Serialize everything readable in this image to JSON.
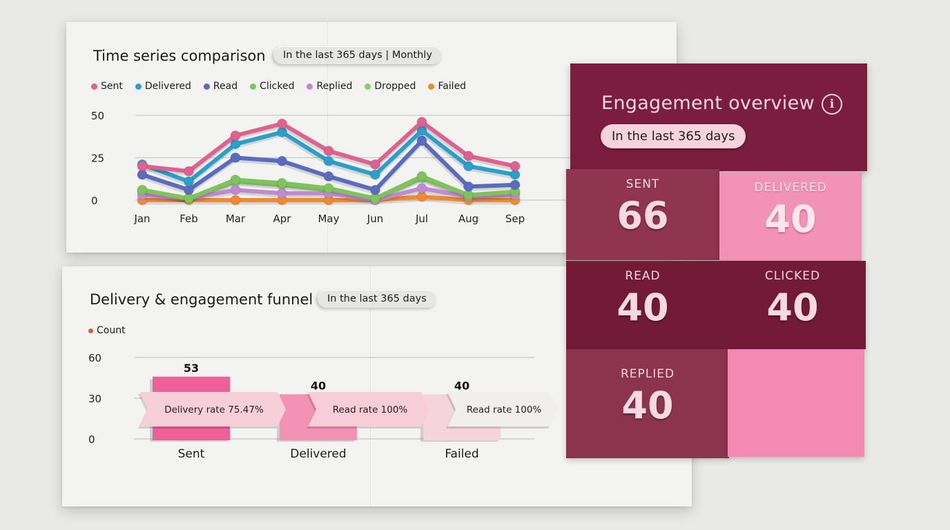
{
  "timeseries": {
    "title": "Time series comparison",
    "filter_pill": "In the last 365 days | Monthly",
    "legend": [
      {
        "label": "Sent",
        "color": "#e0608f"
      },
      {
        "label": "Delivered",
        "color": "#2a9fcc"
      },
      {
        "label": "Read",
        "color": "#5a6cc0"
      },
      {
        "label": "Clicked",
        "color": "#7dc45a"
      },
      {
        "label": "Replied",
        "color": "#c08ad0"
      },
      {
        "label": "Dropped",
        "color": "#8ccc6e"
      },
      {
        "label": "Failed",
        "color": "#f08a2e"
      }
    ],
    "y_ticks": [
      "50",
      "25",
      "0"
    ],
    "x_ticks": [
      "Jan",
      "Feb",
      "Mar",
      "Apr",
      "May",
      "Jun",
      "Jul",
      "Aug",
      "Sep"
    ]
  },
  "funnel": {
    "title": "Delivery & engagement funnel",
    "filter_pill": "In the last 365 days",
    "legend_label": "Count",
    "legend_color": "#d0603a",
    "y_ticks": [
      "60",
      "30",
      "0"
    ],
    "bars": [
      {
        "label": "Sent",
        "value": "53",
        "color": "#ef5f98"
      },
      {
        "label": "Delivered",
        "value": "40",
        "color": "#f392b4"
      },
      {
        "label": "Failed",
        "value": "40",
        "color": "#f6d4dd"
      }
    ],
    "rates": [
      "Delivery rate 75.47%",
      "Read rate 100%",
      "Read rate 100%"
    ]
  },
  "engagement": {
    "title": "Engagement overview",
    "info_icon": "i",
    "filter_pill": "In the last 365 days",
    "tiles": [
      {
        "label": "SENT",
        "value": "66"
      },
      {
        "label": "DELIVERED",
        "value": "40"
      },
      {
        "label": "READ",
        "value": "40"
      },
      {
        "label": "CLICKED",
        "value": "40"
      },
      {
        "label": "REPLIED",
        "value": "40"
      },
      {
        "label": "",
        "value": ""
      }
    ]
  },
  "chart_data": [
    {
      "type": "line",
      "title": "Time series comparison",
      "subtitle": "In the last 365 days | Monthly",
      "x": [
        "Jan",
        "Feb",
        "Mar",
        "Apr",
        "May",
        "Jun",
        "Jul",
        "Aug",
        "Sep"
      ],
      "ylim": [
        0,
        50
      ],
      "yticks": [
        0,
        25,
        50
      ],
      "grid": true,
      "legend_position": "top",
      "series": [
        {
          "name": "Sent",
          "color": "#e0608f",
          "values": [
            20,
            17,
            38,
            45,
            29,
            21,
            46,
            26,
            20
          ]
        },
        {
          "name": "Delivered",
          "color": "#2a9fcc",
          "values": [
            21,
            11,
            33,
            40,
            23,
            15,
            41,
            20,
            15
          ]
        },
        {
          "name": "Read",
          "color": "#5a6cc0",
          "values": [
            15,
            6,
            25,
            23,
            14,
            6,
            35,
            8,
            9
          ]
        },
        {
          "name": "Clicked",
          "color": "#7dc45a",
          "values": [
            6,
            1,
            12,
            10,
            7,
            1,
            14,
            3,
            5
          ]
        },
        {
          "name": "Replied",
          "color": "#c08ad0",
          "values": [
            3,
            1,
            6,
            4,
            4,
            0,
            7,
            2,
            3
          ]
        },
        {
          "name": "Dropped",
          "color": "#8ccc6e",
          "values": [
            5,
            1,
            11,
            9,
            6,
            1,
            13,
            3,
            4
          ]
        },
        {
          "name": "Failed",
          "color": "#f08a2e",
          "values": [
            0,
            0,
            0,
            0,
            0,
            0,
            2,
            0,
            0
          ]
        }
      ]
    },
    {
      "type": "bar",
      "title": "Delivery & engagement funnel",
      "subtitle": "In the last 365 days",
      "categories": [
        "Sent",
        "Delivered",
        "Failed"
      ],
      "series": [
        {
          "name": "Count",
          "values": [
            53,
            40,
            40
          ]
        }
      ],
      "ylim": [
        0,
        60
      ],
      "yticks": [
        0,
        30,
        60
      ],
      "grid": true,
      "annotations": [
        "Delivery rate 75.47%",
        "Read rate 100%",
        "Read rate 100%"
      ]
    }
  ]
}
